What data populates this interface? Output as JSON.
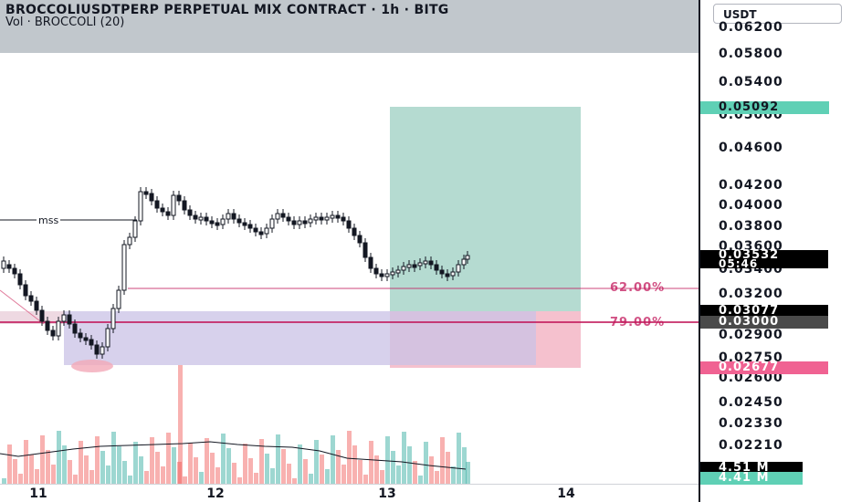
{
  "header": {
    "title": "BROCCOLIUSDTPERP PERPETUAL MIX CONTRACT · 1h · BITG",
    "volume_indicator": "Vol · BROCCOLI (20)"
  },
  "price_axis": {
    "currency": "USDT",
    "ticks": [
      "0.06200",
      "0.05800",
      "0.05400",
      "0.05000",
      "0.04600",
      "0.04200",
      "0.04000",
      "0.03800",
      "0.03600",
      "0.03400",
      "0.03200",
      "0.02900",
      "0.02750",
      "0.02600",
      "0.02450",
      "0.02330",
      "0.02210"
    ],
    "ticks_y": [
      30,
      59,
      90,
      126,
      162,
      203,
      225,
      248,
      270,
      295,
      322,
      367,
      392,
      414,
      441,
      464,
      488
    ]
  },
  "price_labels": {
    "target": "0.05092",
    "current_price": "0.03532",
    "countdown": "05:46",
    "level_1": "0.03077",
    "level_2": "0.03000",
    "stop": "0.02677",
    "volume_1": "4.51 M",
    "volume_2": "4.41 M"
  },
  "annotations": {
    "fib_62": "62.00%",
    "fib_79": "79.00%",
    "mss": "mss"
  },
  "time_axis": {
    "labels": [
      "11",
      "12",
      "13",
      "14"
    ]
  },
  "colors": {
    "up": "#26a69a",
    "down": "#ef5350",
    "candle_body": "#131722",
    "target_zone": "#a8d5c9",
    "stop_zone": "#f3b6c6",
    "order_block": "#c9c2e6",
    "fib_line": "#c2185b"
  },
  "chart_data": {
    "type": "candlestick",
    "symbol": "BROCCOLIUSDTPERP",
    "interval": "1h",
    "x_labels": [
      "11",
      "12",
      "13",
      "14"
    ],
    "ylim": [
      0.022,
      0.062
    ],
    "last_price": 0.03532,
    "levels": {
      "target": 0.05092,
      "entry_top": 0.03077,
      "entry": 0.03,
      "stop": 0.02677
    }
  }
}
